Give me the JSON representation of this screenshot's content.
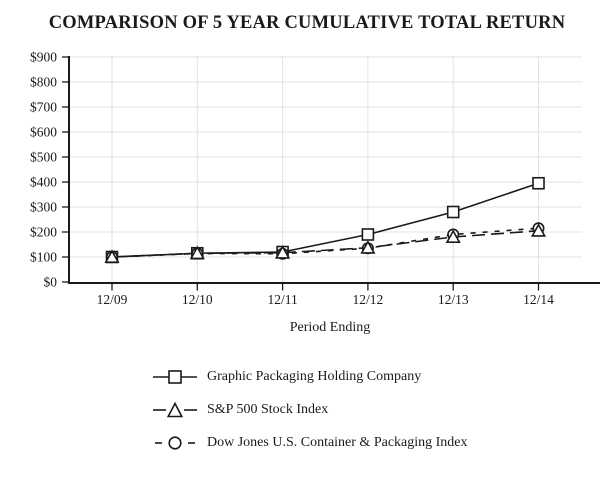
{
  "title": "COMPARISON OF 5 YEAR CUMULATIVE TOTAL RETURN",
  "chart_data": {
    "type": "line",
    "title": "COMPARISON OF 5 YEAR CUMULATIVE TOTAL RETURN",
    "categories": [
      "12/09",
      "12/10",
      "12/11",
      "12/12",
      "12/13",
      "12/14"
    ],
    "series": [
      {
        "name": "Graphic Packaging Holding Company",
        "marker": "square",
        "line_style": "solid",
        "values": [
          100,
          115,
          120,
          190,
          280,
          395
        ]
      },
      {
        "name": "S&P 500 Stock Index",
        "marker": "triangle",
        "line_style": "long-dash",
        "values": [
          100,
          115,
          117,
          137,
          180,
          205
        ]
      },
      {
        "name": "Dow Jones U.S. Container & Packaging Index",
        "marker": "circle",
        "line_style": "short-dash",
        "values": [
          100,
          114,
          113,
          135,
          190,
          215
        ]
      }
    ],
    "xlabel": "Period Ending",
    "ylabel": "",
    "ylim": [
      0,
      900
    ],
    "ytick_step": 100,
    "ytick_prefix": "$",
    "grid": true,
    "legend_position": "bottom-left"
  },
  "colors": {
    "series": "#1a1a1a",
    "grid": "#e2e2e2",
    "axis": "#1a1a1a",
    "text": "#1a1a1a",
    "marker_fill": "#ffffff",
    "background": "#ffffff"
  }
}
